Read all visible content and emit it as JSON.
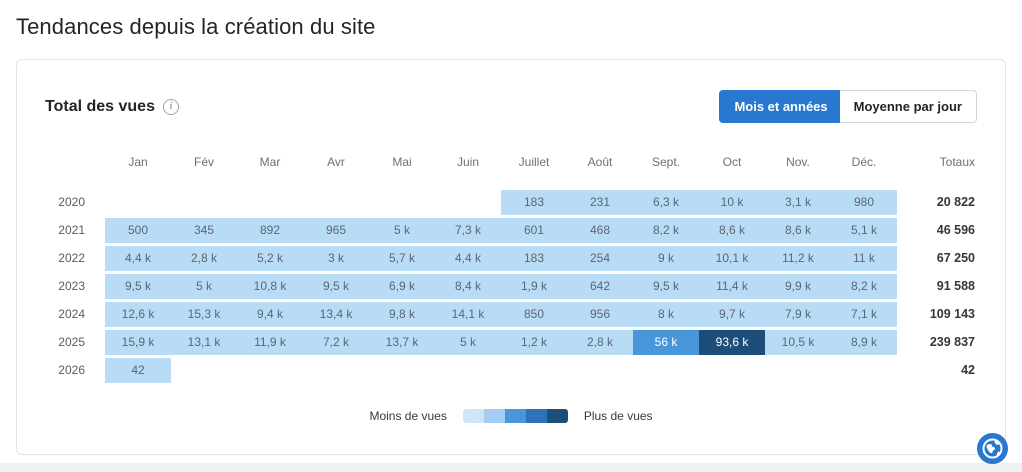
{
  "page_title": "Tendances depuis la création du site",
  "colors": {
    "accent": "#2878d0",
    "cell_levels": [
      "transparent",
      "#b9dcf6",
      "#4a96db",
      "#1d4e79"
    ],
    "card_border": "#e0e4e8"
  },
  "card": {
    "section_title": "Total des vues",
    "info_icon": "i",
    "toggle": {
      "active_label": "Mois et années",
      "inactive_label": "Moyenne par jour"
    }
  },
  "chart_data": {
    "type": "heatmap",
    "title": "Total des vues",
    "columns": [
      "Jan",
      "Fév",
      "Mar",
      "Avr",
      "Mai",
      "Juin",
      "Juillet",
      "Août",
      "Sept.",
      "Oct",
      "Nov.",
      "Déc."
    ],
    "totals_label": "Totaux",
    "rows": [
      {
        "year": "2020",
        "values": [
          "",
          "",
          "",
          "",
          "",
          "",
          "183",
          "231",
          "6,3 k",
          "10 k",
          "3,1 k",
          "980"
        ],
        "levels": [
          0,
          0,
          0,
          0,
          0,
          0,
          1,
          1,
          1,
          1,
          1,
          1
        ],
        "total": "20 822"
      },
      {
        "year": "2021",
        "values": [
          "500",
          "345",
          "892",
          "965",
          "5 k",
          "7,3 k",
          "601",
          "468",
          "8,2 k",
          "8,6 k",
          "8,6 k",
          "5,1 k"
        ],
        "levels": [
          1,
          1,
          1,
          1,
          1,
          1,
          1,
          1,
          1,
          1,
          1,
          1
        ],
        "total": "46 596"
      },
      {
        "year": "2022",
        "values": [
          "4,4 k",
          "2,8 k",
          "5,2 k",
          "3 k",
          "5,7 k",
          "4,4 k",
          "183",
          "254",
          "9 k",
          "10,1 k",
          "11,2 k",
          "11 k"
        ],
        "levels": [
          1,
          1,
          1,
          1,
          1,
          1,
          1,
          1,
          1,
          1,
          1,
          1
        ],
        "total": "67 250"
      },
      {
        "year": "2023",
        "values": [
          "9,5 k",
          "5 k",
          "10,8 k",
          "9,5 k",
          "6,9 k",
          "8,4 k",
          "1,9 k",
          "642",
          "9,5 k",
          "11,4 k",
          "9,9 k",
          "8,2 k"
        ],
        "levels": [
          1,
          1,
          1,
          1,
          1,
          1,
          1,
          1,
          1,
          1,
          1,
          1
        ],
        "total": "91 588"
      },
      {
        "year": "2024",
        "values": [
          "12,6 k",
          "15,3 k",
          "9,4 k",
          "13,4 k",
          "9,8 k",
          "14,1 k",
          "850",
          "956",
          "8 k",
          "9,7 k",
          "7,9 k",
          "7,1 k"
        ],
        "levels": [
          1,
          1,
          1,
          1,
          1,
          1,
          1,
          1,
          1,
          1,
          1,
          1
        ],
        "total": "109 143"
      },
      {
        "year": "2025",
        "values": [
          "15,9 k",
          "13,1 k",
          "11,9 k",
          "7,2 k",
          "13,7 k",
          "5 k",
          "1,2 k",
          "2,8 k",
          "56 k",
          "93,6 k",
          "10,5 k",
          "8,9 k"
        ],
        "levels": [
          1,
          1,
          1,
          1,
          1,
          1,
          1,
          1,
          2,
          3,
          1,
          1
        ],
        "total": "239 837"
      },
      {
        "year": "2026",
        "values": [
          "42",
          "",
          "",
          "",
          "",
          "",
          "",
          "",
          "",
          "",
          "",
          ""
        ],
        "levels": [
          1,
          0,
          0,
          0,
          0,
          0,
          0,
          0,
          0,
          0,
          0,
          0
        ],
        "total": "42"
      }
    ],
    "legend": {
      "less_label": "Moins de vues",
      "more_label": "Plus de vues",
      "colors": [
        "#cfe5f8",
        "#a5cdf1",
        "#4a96db",
        "#2d71b8",
        "#1d4e79"
      ]
    }
  }
}
